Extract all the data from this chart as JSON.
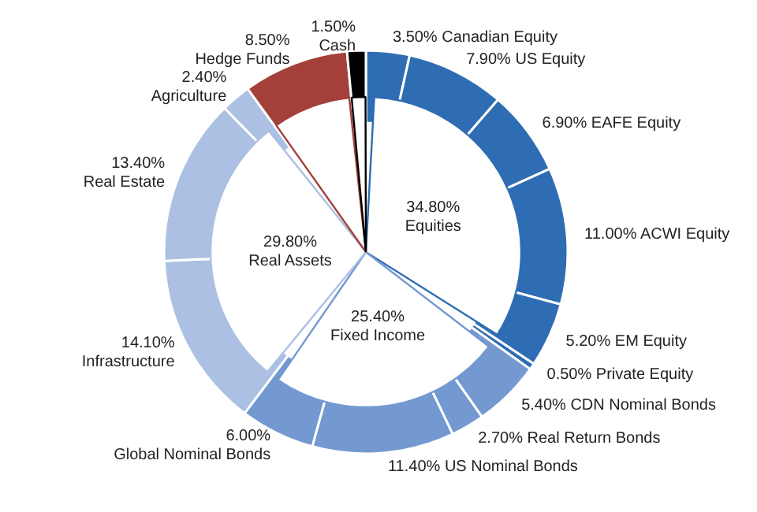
{
  "chart_data": [
    {
      "type": "donut",
      "categories": [
        "Canadian Equity",
        "US Equity",
        "EAFE Equity",
        "ACWI Equity",
        "EM Equity",
        "Private Equity",
        "CDN Nominal Bonds",
        "Real Return Bonds",
        "US Nominal Bonds",
        "Global Nominal Bonds",
        "Infrastructure",
        "Real Estate",
        "Agriculture",
        "Hedge Funds",
        "Cash"
      ],
      "values": [
        3.5,
        7.9,
        6.9,
        11.0,
        5.2,
        0.5,
        5.4,
        2.7,
        11.4,
        6.0,
        14.1,
        13.4,
        2.4,
        8.5,
        1.5
      ],
      "value_labels": [
        "3.50%",
        "7.90%",
        "6.90%",
        "11.00%",
        "5.20%",
        "0.50%",
        "5.40%",
        "2.70%",
        "11.40%",
        "6.00%",
        "14.10%",
        "13.40%",
        "2.40%",
        "8.50%",
        "1.50%"
      ],
      "colors": [
        "#2e6db4",
        "#2e6db4",
        "#2e6db4",
        "#2e6db4",
        "#2e6db4",
        "#2e6db4",
        "#7399d0",
        "#7399d0",
        "#7399d0",
        "#7399d0",
        "#abc0e3",
        "#abc0e3",
        "#abc0e3",
        "#a3403a",
        "#000000"
      ]
    },
    {
      "type": "pie",
      "categories": [
        "Equities",
        "Fixed Income",
        "Real Assets",
        null,
        null
      ],
      "values": [
        34.8,
        25.4,
        29.8,
        8.5,
        1.5
      ],
      "value_labels": [
        "34.80%",
        "25.40%",
        "29.80%",
        null,
        null
      ],
      "colors": [
        "#2e6db4",
        "#7399d0",
        "#abc0e3",
        "#a3403a",
        "#000000"
      ]
    }
  ]
}
